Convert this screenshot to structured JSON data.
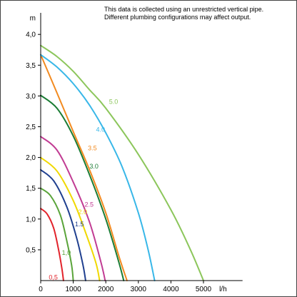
{
  "note": {
    "line1": "This data is collected using an unrestricted vertical pipe.",
    "line2": "Different plumbing configurations may affect output."
  },
  "chart_data": {
    "type": "line",
    "title": "",
    "xlabel": "l/h",
    "ylabel": "m",
    "xlim": [
      0,
      6200
    ],
    "ylim": [
      0,
      4.35
    ],
    "x_ticks": [
      "0",
      "1000",
      "2000",
      "3000",
      "4000",
      "5000"
    ],
    "x_tick_values": [
      0,
      1000,
      2000,
      3000,
      4000,
      5000
    ],
    "y_ticks": [
      "0,5",
      "1,0",
      "1,5",
      "2,0",
      "2,5",
      "3,0",
      "3,5",
      "4,0"
    ],
    "y_tick_values": [
      0.5,
      1.0,
      1.5,
      2.0,
      2.5,
      3.0,
      3.5,
      4.0
    ],
    "grid": false,
    "legend": "inline labels",
    "series": [
      {
        "name": "0.5",
        "label": "0,5",
        "color": "#e2232b",
        "label_at": [
          250,
          0.02
        ],
        "points": [
          [
            0,
            1.17
          ],
          [
            200,
            1.08
          ],
          [
            400,
            0.85
          ],
          [
            550,
            0.5
          ],
          [
            650,
            0.2
          ],
          [
            700,
            0
          ]
        ]
      },
      {
        "name": "1.0",
        "label": "1,0",
        "color": "#5aa43a",
        "label_at": [
          650,
          0.42
        ],
        "points": [
          [
            0,
            1.5
          ],
          [
            300,
            1.38
          ],
          [
            600,
            1.07
          ],
          [
            800,
            0.65
          ],
          [
            950,
            0.25
          ],
          [
            1000,
            0
          ]
        ]
      },
      {
        "name": "1.5",
        "label": "1.5",
        "color": "#1f3f8f",
        "label_at": [
          1050,
          0.88
        ],
        "points": [
          [
            0,
            1.8
          ],
          [
            400,
            1.62
          ],
          [
            800,
            1.2
          ],
          [
            1100,
            0.7
          ],
          [
            1300,
            0.25
          ],
          [
            1380,
            0
          ]
        ]
      },
      {
        "name": "2.0",
        "label": "2.0",
        "color": "#f0d800",
        "label_at": [
          1150,
          1.08
        ],
        "points": [
          [
            0,
            2.0
          ],
          [
            500,
            1.78
          ],
          [
            1000,
            1.3
          ],
          [
            1400,
            0.75
          ],
          [
            1700,
            0.28
          ],
          [
            1810,
            0
          ]
        ]
      },
      {
        "name": "2.5",
        "label": "2.5",
        "color": "#c13c93",
        "label_at": [
          1350,
          1.2
        ],
        "points": [
          [
            0,
            2.34
          ],
          [
            500,
            2.12
          ],
          [
            1000,
            1.6
          ],
          [
            1500,
            0.95
          ],
          [
            1850,
            0.3
          ],
          [
            1980,
            0
          ]
        ]
      },
      {
        "name": "3.0",
        "label": "3.0",
        "color": "#1b7c34",
        "label_at": [
          1500,
          1.82
        ],
        "points": [
          [
            0,
            3.01
          ],
          [
            500,
            2.8
          ],
          [
            1000,
            2.35
          ],
          [
            1500,
            1.72
          ],
          [
            2000,
            1.0
          ],
          [
            2400,
            0.3
          ],
          [
            2550,
            0
          ]
        ]
      },
      {
        "name": "3.5",
        "label": "3.5",
        "color": "#f28a1f",
        "label_at": [
          1450,
          2.12
        ],
        "points": [
          [
            0,
            3.67
          ],
          [
            500,
            3.05
          ],
          [
            1000,
            2.42
          ],
          [
            1500,
            1.8
          ],
          [
            2000,
            1.1
          ],
          [
            2400,
            0.4
          ],
          [
            2650,
            0
          ]
        ]
      },
      {
        "name": "4.0",
        "label": "4.0",
        "color": "#38b7e8",
        "label_at": [
          1700,
          2.42
        ],
        "points": [
          [
            0,
            3.67
          ],
          [
            500,
            3.47
          ],
          [
            1000,
            3.2
          ],
          [
            1500,
            2.85
          ],
          [
            2000,
            2.4
          ],
          [
            2500,
            1.85
          ],
          [
            3000,
            1.1
          ],
          [
            3300,
            0.5
          ],
          [
            3500,
            0
          ]
        ]
      },
      {
        "name": "5.0",
        "label": "5.0",
        "color": "#8cc65b",
        "label_at": [
          2100,
          2.87
        ],
        "points": [
          [
            0,
            3.82
          ],
          [
            500,
            3.64
          ],
          [
            1000,
            3.4
          ],
          [
            1500,
            3.1
          ],
          [
            2000,
            2.8
          ],
          [
            3000,
            2.05
          ],
          [
            4000,
            1.15
          ],
          [
            4600,
            0.5
          ],
          [
            5000,
            0
          ]
        ]
      }
    ]
  }
}
